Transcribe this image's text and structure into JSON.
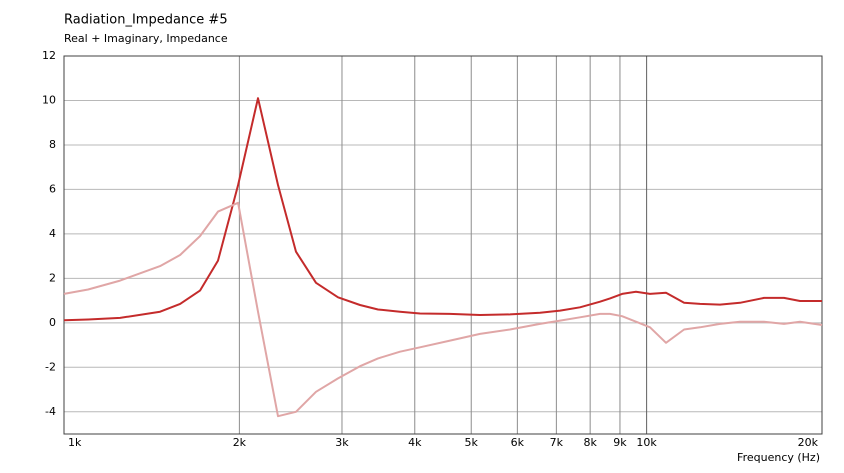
{
  "chart_data": {
    "type": "line",
    "title": "Radiation_Impedance #5",
    "subtitle": "Real + Imaginary, Impedance",
    "x_label": "Frequency  (Hz)",
    "log_x": true,
    "grid": true,
    "x": [
      1000,
      1100,
      1248,
      1462,
      1582,
      1712,
      1838,
      1990,
      2153,
      2330,
      2502,
      2707,
      2953,
      3222,
      3459,
      3773,
      4083,
      4598,
      5176,
      5829,
      6562,
      7103,
      7686,
      8318,
      8653,
      9075,
      9590,
      10135,
      10797,
      11596,
      12349,
      13365,
      14464,
      15903,
      17211,
      18336,
      20000
    ],
    "series": [
      {
        "color": "#c42b2b",
        "values": [
          0.12,
          0.15,
          0.22,
          0.5,
          0.85,
          1.45,
          2.8,
          6.2,
          10.1,
          6.2,
          3.2,
          1.8,
          1.15,
          0.8,
          0.6,
          0.5,
          0.42,
          0.4,
          0.35,
          0.38,
          0.45,
          0.55,
          0.7,
          0.95,
          1.1,
          1.3,
          1.4,
          1.3,
          1.35,
          0.9,
          0.85,
          0.82,
          0.9,
          1.12,
          1.12,
          0.98,
          0.98
        ]
      },
      {
        "color": "#e0a6a6",
        "values": [
          1.3,
          1.5,
          1.9,
          2.55,
          3.05,
          3.9,
          5.0,
          5.4,
          0.5,
          -4.2,
          -4.0,
          -3.1,
          -2.5,
          -1.95,
          -1.6,
          -1.3,
          -1.1,
          -0.8,
          -0.5,
          -0.3,
          -0.05,
          0.1,
          0.25,
          0.4,
          0.4,
          0.3,
          0.05,
          -0.2,
          -0.9,
          -0.3,
          -0.2,
          -0.05,
          0.05,
          0.05,
          -0.05,
          0.05,
          -0.1
        ]
      }
    ],
    "xlim": [
      1000,
      20000
    ],
    "xticks": [
      {
        "value": 1000,
        "label": "1k"
      },
      {
        "value": 2000,
        "label": "2k"
      },
      {
        "value": 3000,
        "label": "3k"
      },
      {
        "value": 4000,
        "label": "4k"
      },
      {
        "value": 5000,
        "label": "5k"
      },
      {
        "value": 6000,
        "label": "6k"
      },
      {
        "value": 7000,
        "label": "7k"
      },
      {
        "value": 8000,
        "label": "8k"
      },
      {
        "value": 9000,
        "label": "9k"
      },
      {
        "value": 10000,
        "label": "10k"
      },
      {
        "value": 20000,
        "label": "20k"
      }
    ],
    "ylim": [
      -5,
      12
    ],
    "yticks": [
      -4,
      -2,
      0,
      2,
      4,
      6,
      8,
      10,
      12
    ]
  }
}
